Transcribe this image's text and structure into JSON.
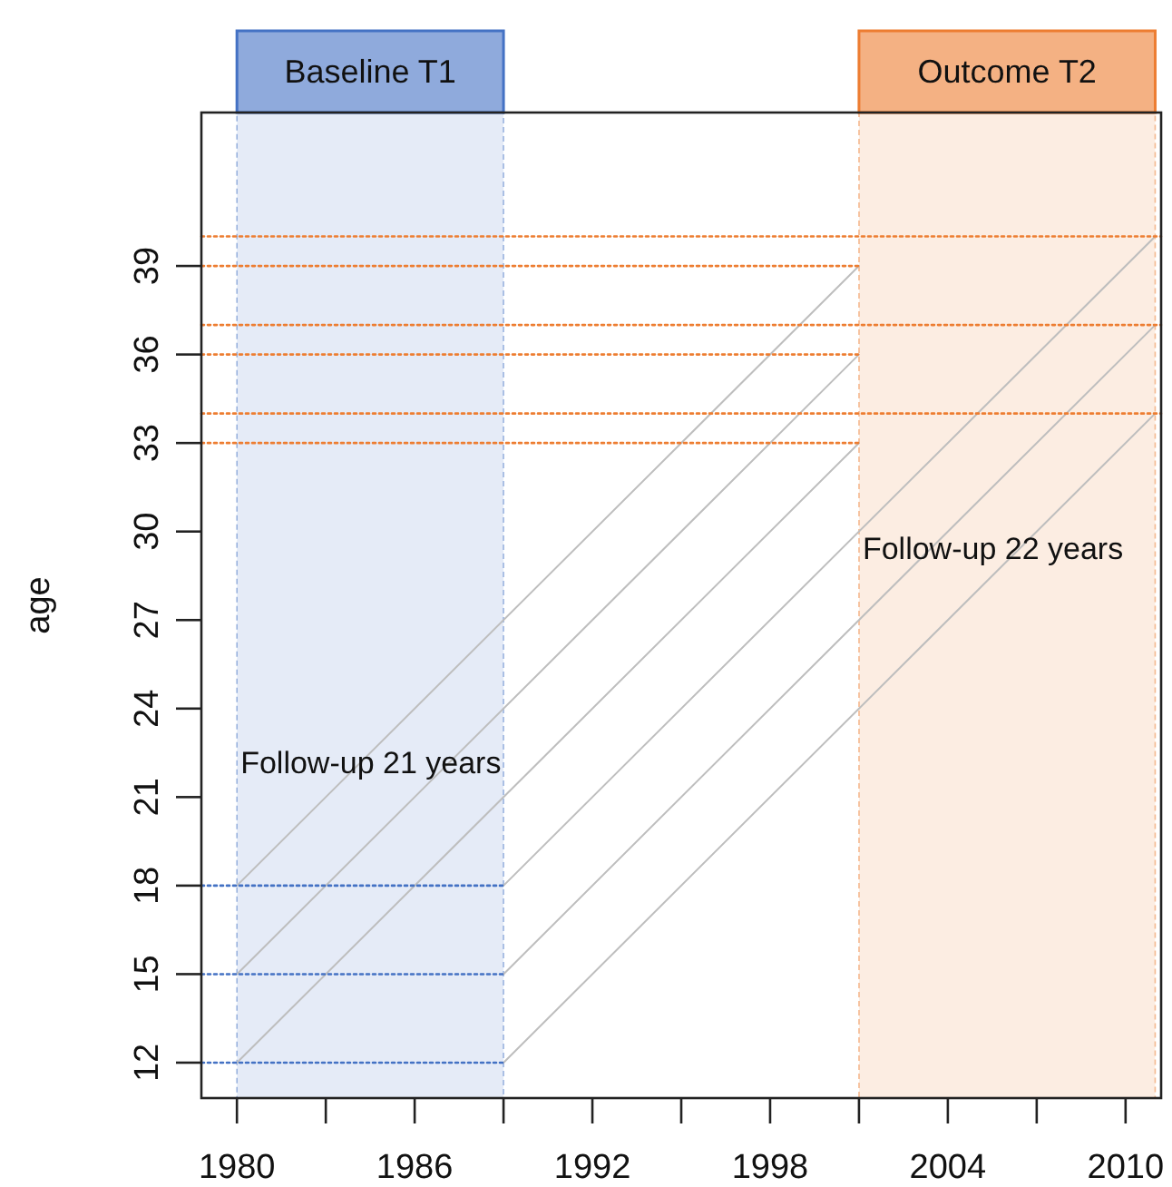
{
  "chart_data": {
    "type": "line",
    "ylabel": "age",
    "xlim": [
      1978.8,
      2011.2
    ],
    "ylim": [
      10.8,
      44.2
    ],
    "xticks": [
      1980,
      {
        "value": 1983,
        "label": null
      },
      1986,
      {
        "value": 1989,
        "label": null
      },
      1992,
      {
        "value": 1995,
        "label": null
      },
      1998,
      {
        "value": 2001,
        "label": null
      },
      2004,
      {
        "value": 2007,
        "label": null
      },
      2010
    ],
    "yticks": [
      12,
      15,
      18,
      21,
      24,
      27,
      30,
      33,
      36,
      39
    ],
    "grid": false,
    "bands": [
      {
        "axis": "x",
        "from": 1980,
        "to": 1989,
        "label": "Baseline T1",
        "color": "#4472c4"
      },
      {
        "axis": "x",
        "from": 2001,
        "to": 2011,
        "label": "Outcome T2",
        "color": "#ed7d31"
      }
    ],
    "series": [
      {
        "color": "#bebebe",
        "line_style": "solid",
        "x": [
          1980,
          2001
        ],
        "values": [
          12,
          33
        ]
      },
      {
        "color": "#bebebe",
        "line_style": "solid",
        "x": [
          1980,
          2001
        ],
        "values": [
          15,
          36
        ]
      },
      {
        "color": "#bebebe",
        "line_style": "solid",
        "x": [
          1980,
          2001
        ],
        "values": [
          18,
          39
        ]
      },
      {
        "color": "#bebebe",
        "line_style": "solid",
        "x": [
          1989,
          2011
        ],
        "values": [
          12,
          34
        ]
      },
      {
        "color": "#bebebe",
        "line_style": "solid",
        "x": [
          1989,
          2011
        ],
        "values": [
          15,
          37
        ]
      },
      {
        "color": "#bebebe",
        "line_style": "solid",
        "x": [
          1989,
          2011
        ],
        "values": [
          18,
          40
        ]
      },
      {
        "color": "#4472c4",
        "line_style": "dotted",
        "x": [
          1978.8,
          1989
        ],
        "values": [
          12,
          12
        ]
      },
      {
        "color": "#4472c4",
        "line_style": "dotted",
        "x": [
          1978.8,
          1989
        ],
        "values": [
          15,
          15
        ]
      },
      {
        "color": "#4472c4",
        "line_style": "dotted",
        "x": [
          1978.8,
          1989
        ],
        "values": [
          18,
          18
        ]
      },
      {
        "color": "#ed7d31",
        "line_style": "dotted",
        "x": [
          1978.8,
          2001
        ],
        "values": [
          33,
          33
        ]
      },
      {
        "color": "#ed7d31",
        "line_style": "dotted",
        "x": [
          1978.8,
          2001
        ],
        "values": [
          36,
          36
        ]
      },
      {
        "color": "#ed7d31",
        "line_style": "dotted",
        "x": [
          1978.8,
          2001
        ],
        "values": [
          39,
          39
        ]
      },
      {
        "color": "#ed7d31",
        "line_style": "dotted",
        "x": [
          1978.8,
          2011.2
        ],
        "values": [
          34,
          34
        ]
      },
      {
        "color": "#ed7d31",
        "line_style": "dotted",
        "x": [
          1978.8,
          2011.2
        ],
        "values": [
          37,
          37
        ]
      },
      {
        "color": "#ed7d31",
        "line_style": "dotted",
        "x": [
          1978.8,
          2011.2
        ],
        "values": [
          40,
          40
        ]
      }
    ],
    "annotations": [
      "Follow-up 21 years",
      "Follow-up 22 years"
    ]
  }
}
